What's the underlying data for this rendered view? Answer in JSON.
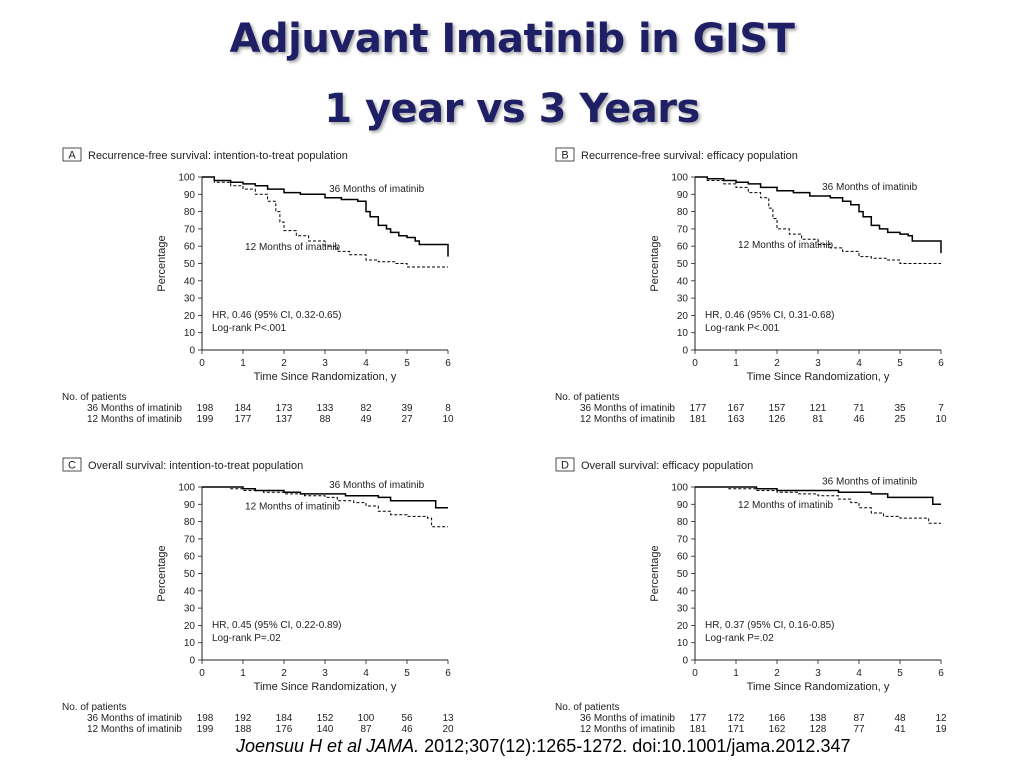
{
  "title": {
    "line1": "Adjuvant Imatinib in GIST",
    "line2": "1 year vs 3 Years"
  },
  "citation": {
    "authors": "Joensuu H et al",
    "journal": "JAMA.",
    "details": "2012;307(12):1265-1272. doi:10.1001/jama.2012.347"
  },
  "colors": {
    "title": "#1f1f66",
    "line": "#000000"
  },
  "chart_data": [
    {
      "type": "line",
      "panel_letter": "A",
      "title": "Recurrence-free survival: intention-to-treat population",
      "xlabel": "Time Since Randomization, y",
      "ylabel": "Percentage",
      "xlim": [
        0,
        6
      ],
      "ylim": [
        0,
        100
      ],
      "x_ticks": [
        0,
        1,
        2,
        3,
        4,
        5,
        6
      ],
      "y_ticks": [
        0,
        10,
        20,
        30,
        40,
        50,
        60,
        70,
        80,
        90,
        100
      ],
      "series": [
        {
          "name": "36 Months of imatinib",
          "style": "solid",
          "points": [
            [
              0,
              100
            ],
            [
              0.3,
              98
            ],
            [
              0.7,
              97
            ],
            [
              1,
              96
            ],
            [
              1.3,
              95
            ],
            [
              1.6,
              93
            ],
            [
              2,
              91
            ],
            [
              2.4,
              90
            ],
            [
              3,
              88
            ],
            [
              3.4,
              87
            ],
            [
              3.8,
              86
            ],
            [
              4,
              80
            ],
            [
              4.1,
              77
            ],
            [
              4.3,
              72
            ],
            [
              4.5,
              70
            ],
            [
              4.6,
              68
            ],
            [
              4.8,
              66
            ],
            [
              5,
              65
            ],
            [
              5.2,
              63
            ],
            [
              5.3,
              61
            ],
            [
              5.8,
              61
            ],
            [
              6,
              58
            ],
            [
              6,
              54
            ]
          ]
        },
        {
          "name": "12 Months of imatinib",
          "style": "dashed",
          "points": [
            [
              0,
              100
            ],
            [
              0.3,
              97
            ],
            [
              0.7,
              95
            ],
            [
              1,
              93
            ],
            [
              1.3,
              90
            ],
            [
              1.6,
              86
            ],
            [
              1.8,
              80
            ],
            [
              1.9,
              74
            ],
            [
              2,
              69
            ],
            [
              2.3,
              66
            ],
            [
              2.6,
              63
            ],
            [
              3,
              60
            ],
            [
              3.3,
              57
            ],
            [
              3.6,
              55
            ],
            [
              4,
              52
            ],
            [
              4.3,
              51
            ],
            [
              4.7,
              50
            ],
            [
              5,
              48
            ],
            [
              6,
              48
            ]
          ]
        }
      ],
      "annotations": [
        "HR, 0.46 (95% CI, 0.32-0.65)",
        "Log-rank P<.001"
      ],
      "risk_table": {
        "header": "No. of patients",
        "rows": [
          {
            "label": "36 Months of imatinib",
            "values": [
              198,
              184,
              173,
              133,
              82,
              39,
              8
            ]
          },
          {
            "label": "12 Months of imatinib",
            "values": [
              199,
              177,
              137,
              88,
              49,
              27,
              10
            ]
          }
        ]
      }
    },
    {
      "type": "line",
      "panel_letter": "B",
      "title": "Recurrence-free survival: efficacy population",
      "xlabel": "Time Since Randomization, y",
      "ylabel": "Percentage",
      "xlim": [
        0,
        6
      ],
      "ylim": [
        0,
        100
      ],
      "x_ticks": [
        0,
        1,
        2,
        3,
        4,
        5,
        6
      ],
      "y_ticks": [
        0,
        10,
        20,
        30,
        40,
        50,
        60,
        70,
        80,
        90,
        100
      ],
      "series": [
        {
          "name": "36 Months of imatinib",
          "style": "solid",
          "points": [
            [
              0,
              100
            ],
            [
              0.3,
              99
            ],
            [
              0.7,
              98
            ],
            [
              1,
              97
            ],
            [
              1.3,
              96
            ],
            [
              1.6,
              94
            ],
            [
              2,
              92
            ],
            [
              2.4,
              91
            ],
            [
              2.8,
              89
            ],
            [
              3.3,
              88
            ],
            [
              3.6,
              86
            ],
            [
              3.8,
              84
            ],
            [
              4,
              80
            ],
            [
              4.1,
              77
            ],
            [
              4.3,
              72
            ],
            [
              4.5,
              70
            ],
            [
              4.7,
              68
            ],
            [
              5,
              67
            ],
            [
              5.2,
              66
            ],
            [
              5.3,
              63
            ],
            [
              5.8,
              63
            ],
            [
              6,
              60
            ],
            [
              6,
              56
            ]
          ]
        },
        {
          "name": "12 Months of imatinib",
          "style": "dashed",
          "points": [
            [
              0,
              100
            ],
            [
              0.3,
              98
            ],
            [
              0.7,
              96
            ],
            [
              1,
              94
            ],
            [
              1.3,
              91
            ],
            [
              1.6,
              88
            ],
            [
              1.8,
              82
            ],
            [
              1.9,
              76
            ],
            [
              2,
              70
            ],
            [
              2.3,
              67
            ],
            [
              2.6,
              64
            ],
            [
              3,
              61
            ],
            [
              3.3,
              59
            ],
            [
              3.6,
              57
            ],
            [
              4,
              54
            ],
            [
              4.3,
              53
            ],
            [
              4.7,
              52
            ],
            [
              5,
              50
            ],
            [
              6,
              50
            ]
          ]
        }
      ],
      "annotations": [
        "HR, 0.46 (95% CI, 0.31-0.68)",
        "Log-rank P<.001"
      ],
      "risk_table": {
        "header": "No. of patients",
        "rows": [
          {
            "label": "36 Months of imatinib",
            "values": [
              177,
              167,
              157,
              121,
              71,
              35,
              7
            ]
          },
          {
            "label": "12 Months of imatinib",
            "values": [
              181,
              163,
              126,
              81,
              46,
              25,
              10
            ]
          }
        ]
      }
    },
    {
      "type": "line",
      "panel_letter": "C",
      "title": "Overall survival: intention-to-treat population",
      "xlabel": "Time Since Randomization, y",
      "ylabel": "Percentage",
      "xlim": [
        0,
        6
      ],
      "ylim": [
        0,
        100
      ],
      "x_ticks": [
        0,
        1,
        2,
        3,
        4,
        5,
        6
      ],
      "y_ticks": [
        0,
        10,
        20,
        30,
        40,
        50,
        60,
        70,
        80,
        90,
        100
      ],
      "series": [
        {
          "name": "36 Months of imatinib",
          "style": "solid",
          "points": [
            [
              0,
              100
            ],
            [
              0.8,
              100
            ],
            [
              1,
              99
            ],
            [
              1.3,
              98
            ],
            [
              2,
              97
            ],
            [
              2.4,
              96
            ],
            [
              3,
              96
            ],
            [
              3.5,
              95
            ],
            [
              4,
              95
            ],
            [
              4.3,
              94
            ],
            [
              4.6,
              92
            ],
            [
              5.5,
              92
            ],
            [
              5.7,
              88
            ],
            [
              6,
              88
            ]
          ]
        },
        {
          "name": "12 Months of imatinib",
          "style": "dashed",
          "points": [
            [
              0,
              100
            ],
            [
              0.7,
              99
            ],
            [
              1,
              98
            ],
            [
              1.5,
              97
            ],
            [
              2,
              96
            ],
            [
              2.5,
              95
            ],
            [
              3,
              94
            ],
            [
              3.3,
              92
            ],
            [
              3.7,
              91
            ],
            [
              4,
              89
            ],
            [
              4.3,
              86
            ],
            [
              4.6,
              84
            ],
            [
              5,
              83
            ],
            [
              5.5,
              82
            ],
            [
              5.6,
              77
            ],
            [
              6,
              77
            ]
          ]
        }
      ],
      "annotations": [
        "HR, 0.45 (95% CI, 0.22-0.89)",
        "Log-rank P=.02"
      ],
      "risk_table": {
        "header": "No. of patients",
        "rows": [
          {
            "label": "36 Months of imatinib",
            "values": [
              198,
              192,
              184,
              152,
              100,
              56,
              13
            ]
          },
          {
            "label": "12 Months of imatinib",
            "values": [
              199,
              188,
              176,
              140,
              87,
              46,
              20
            ]
          }
        ]
      }
    },
    {
      "type": "line",
      "panel_letter": "D",
      "title": "Overall survival: efficacy population",
      "xlabel": "Time Since Randomization, y",
      "ylabel": "Percentage",
      "xlim": [
        0,
        6
      ],
      "ylim": [
        0,
        100
      ],
      "x_ticks": [
        0,
        1,
        2,
        3,
        4,
        5,
        6
      ],
      "y_ticks": [
        0,
        10,
        20,
        30,
        40,
        50,
        60,
        70,
        80,
        90,
        100
      ],
      "series": [
        {
          "name": "36 Months of imatinib",
          "style": "solid",
          "points": [
            [
              0,
              100
            ],
            [
              1,
              100
            ],
            [
              1.5,
              99
            ],
            [
              2,
              98
            ],
            [
              3,
              98
            ],
            [
              3.5,
              97
            ],
            [
              4,
              97
            ],
            [
              4.3,
              96
            ],
            [
              4.7,
              94
            ],
            [
              5.7,
              94
            ],
            [
              5.8,
              90
            ],
            [
              6,
              90
            ]
          ]
        },
        {
          "name": "12 Months of imatinib",
          "style": "dashed",
          "points": [
            [
              0,
              100
            ],
            [
              0.8,
              99
            ],
            [
              1,
              99
            ],
            [
              1.5,
              98
            ],
            [
              2,
              97
            ],
            [
              2.5,
              96
            ],
            [
              3,
              95
            ],
            [
              3.5,
              93
            ],
            [
              3.8,
              91
            ],
            [
              4,
              88
            ],
            [
              4.3,
              85
            ],
            [
              4.6,
              83
            ],
            [
              5,
              82
            ],
            [
              5.5,
              82
            ],
            [
              5.7,
              79
            ],
            [
              6,
              79
            ]
          ]
        }
      ],
      "annotations": [
        "HR, 0.37 (95% CI, 0.16-0.85)",
        "Log-rank P=.02"
      ],
      "risk_table": {
        "header": "No. of patients",
        "rows": [
          {
            "label": "36 Months of imatinib",
            "values": [
              177,
              172,
              166,
              138,
              87,
              48,
              12
            ]
          },
          {
            "label": "12 Months of imatinib",
            "values": [
              181,
              171,
              162,
              128,
              77,
              41,
              19
            ]
          }
        ]
      }
    }
  ]
}
